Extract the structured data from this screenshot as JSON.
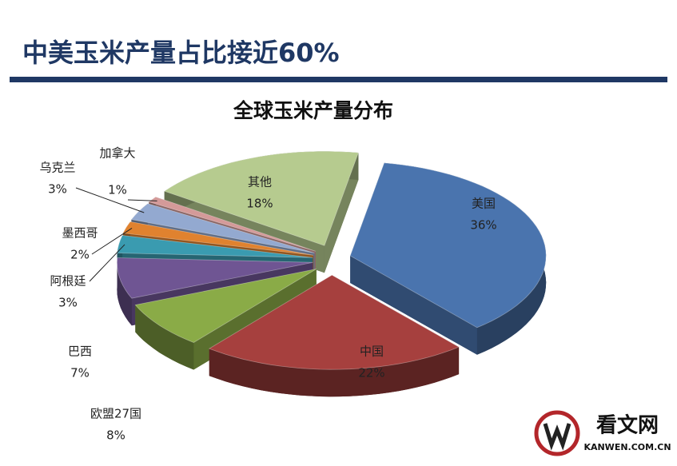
{
  "header": {
    "title": "中美玉米产量占比接近60%"
  },
  "chart_data": {
    "type": "pie",
    "title": "全球玉米产量分布",
    "categories": [
      "美国",
      "中国",
      "欧盟27国",
      "巴西",
      "阿根廷",
      "墨西哥",
      "乌克兰",
      "加拿大",
      "其他"
    ],
    "values": [
      36,
      22,
      8,
      7,
      3,
      2,
      3,
      1,
      18
    ],
    "value_labels": [
      "36%",
      "22%",
      "8%",
      "7%",
      "3%",
      "2%",
      "3%",
      "1%",
      "18%"
    ],
    "colors": [
      "#4a74ae",
      "#a6403e",
      "#8aab47",
      "#6f5593",
      "#3a9bb0",
      "#e0822f",
      "#93a9d0",
      "#d49a99",
      "#b6cb8f"
    ]
  },
  "watermark": {
    "name": "看文网",
    "url": "KANWEN.COM.CN"
  }
}
